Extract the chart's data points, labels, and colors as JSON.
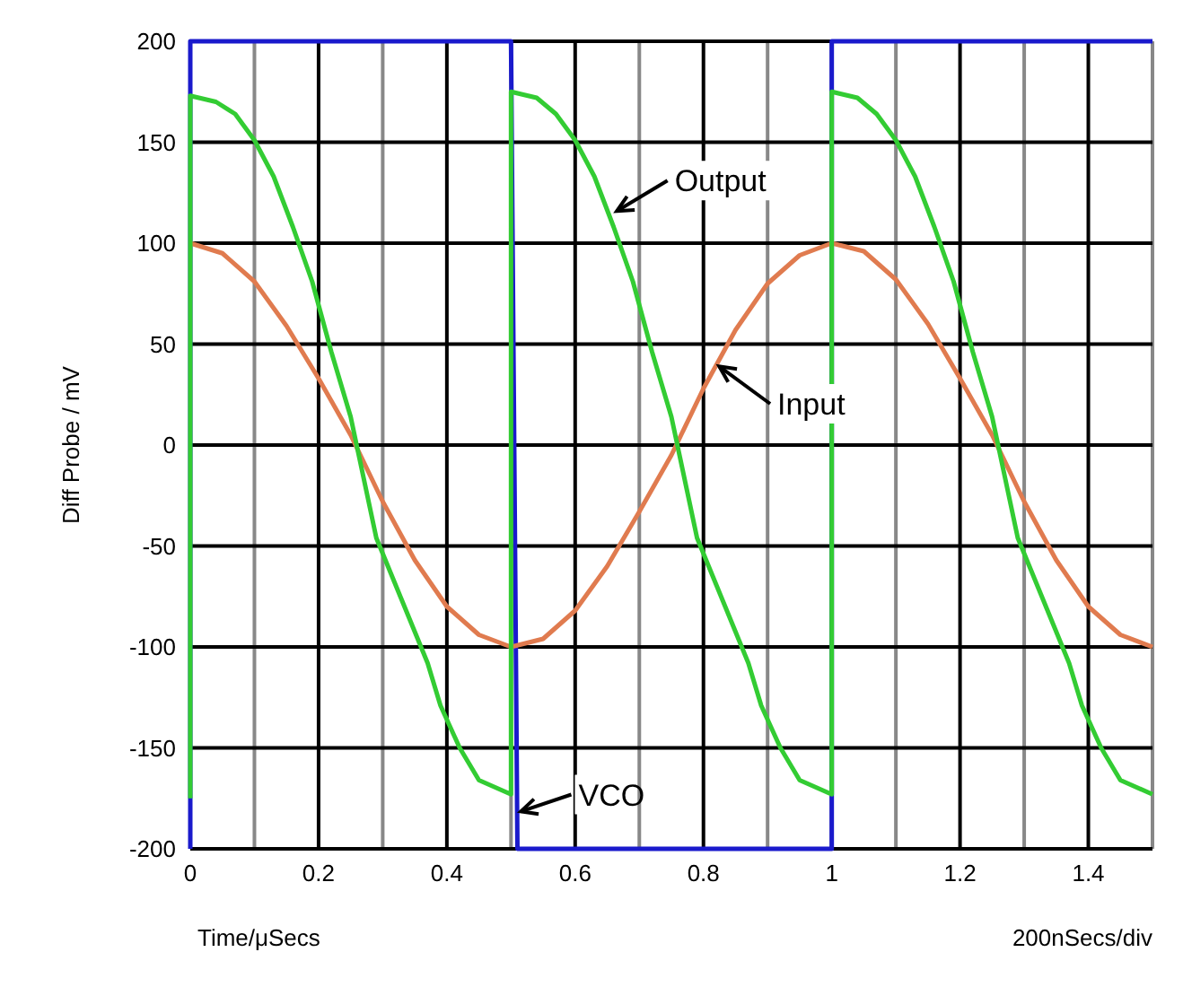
{
  "chart_data": {
    "type": "line",
    "xlabel": "Time/μSecs",
    "ylabel": "Diff Probe / mV",
    "xlim": [
      0,
      1.5
    ],
    "ylim": [
      -200,
      200
    ],
    "xticks": [
      0,
      {
        "value": 0.1,
        "label": null
      },
      {
        "value": 0.2,
        "label": "0.2"
      },
      {
        "value": 0.3,
        "label": null
      },
      {
        "value": 0.4,
        "label": "0.4"
      },
      {
        "value": 0.5,
        "label": null
      },
      {
        "value": 0.6,
        "label": "0.6"
      },
      {
        "value": 0.7,
        "label": null
      },
      {
        "value": 0.8,
        "label": "0.8"
      },
      {
        "value": 0.9,
        "label": null
      },
      1,
      {
        "value": 1.1,
        "label": null
      },
      {
        "value": 1.2,
        "label": "1.2"
      },
      {
        "value": 1.3,
        "label": null
      },
      {
        "value": 1.4,
        "label": "1.4"
      },
      {
        "value": 1.5,
        "label": null
      }
    ],
    "yticks": [
      -200,
      -150,
      -100,
      -50,
      0,
      50,
      100,
      150,
      200
    ],
    "grid": true,
    "marker": "none",
    "line_style": "solid",
    "series": [
      {
        "color": "#1a1acc",
        "x": [
          0,
          0,
          0.5,
          0.51,
          1.0,
          1.0,
          1.5
        ],
        "values": [
          -200,
          200,
          200,
          -200,
          -200,
          200,
          200
        ]
      },
      {
        "color": "#e07b4f",
        "x": [
          0,
          0.05,
          0.1,
          0.15,
          0.2,
          0.25,
          0.3,
          0.35,
          0.4,
          0.45,
          0.5,
          0.55,
          0.6,
          0.65,
          0.7,
          0.75,
          0.8,
          0.85,
          0.9,
          0.95,
          1.0,
          1.05,
          1.1,
          1.15,
          1.2,
          1.25,
          1.3,
          1.35,
          1.4,
          1.45,
          1.5
        ],
        "values": [
          100,
          95,
          81,
          59,
          33,
          5,
          -28,
          -57,
          -80,
          -94,
          -100,
          -96,
          -82,
          -60,
          -33,
          -5,
          28,
          57,
          80,
          94,
          100,
          96,
          82,
          60,
          33,
          5,
          -28,
          -57,
          -80,
          -94,
          -100
        ]
      },
      {
        "color": "#33cc33",
        "x": [
          0,
          0,
          0.04,
          0.07,
          0.1,
          0.13,
          0.16,
          0.19,
          0.22,
          0.25,
          0.29,
          0.33,
          0.37,
          0.39,
          0.42,
          0.45,
          0.5,
          0.5,
          0.54,
          0.57,
          0.6,
          0.63,
          0.66,
          0.69,
          0.72,
          0.75,
          0.79,
          0.83,
          0.87,
          0.89,
          0.92,
          0.95,
          1.0,
          1.0,
          1.04,
          1.07,
          1.1,
          1.13,
          1.16,
          1.19,
          1.22,
          1.25,
          1.29,
          1.33,
          1.37,
          1.39,
          1.42,
          1.45,
          1.5
        ],
        "values": [
          -175,
          173,
          170,
          164,
          151,
          133,
          108,
          81,
          46,
          14,
          -46,
          -77,
          -108,
          -129,
          -150,
          -166,
          -173,
          175,
          172,
          164,
          151,
          133,
          108,
          81,
          46,
          14,
          -46,
          -77,
          -108,
          -129,
          -150,
          -166,
          -173,
          175,
          172,
          164,
          151,
          133,
          108,
          81,
          46,
          14,
          -46,
          -77,
          -108,
          -129,
          -150,
          -166,
          -173
        ]
      }
    ],
    "annotations": [
      {
        "text": "Output",
        "x": 0.66,
        "y": 115
      },
      {
        "text": "Input",
        "x": 0.82,
        "y": 40
      },
      {
        "text": "VCO",
        "x": 0.51,
        "y": -182
      },
      "200nSecs/div"
    ]
  }
}
